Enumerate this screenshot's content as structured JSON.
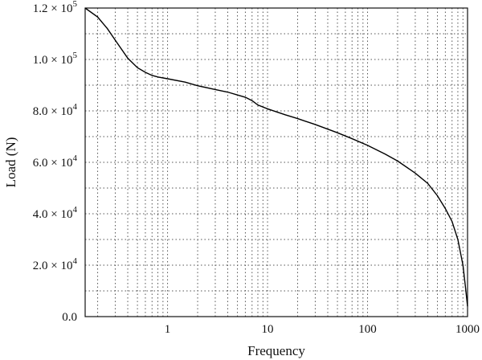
{
  "chart_data": {
    "type": "line",
    "title": "",
    "xlabel": "Frequency",
    "ylabel": "Load (N)",
    "x_scale": "log",
    "xlim": [
      0.15,
      1000
    ],
    "ylim": [
      0,
      120000
    ],
    "grid": true,
    "x_ticks": [
      {
        "value": 1,
        "label": "1"
      },
      {
        "value": 10,
        "label": "10"
      },
      {
        "value": 100,
        "label": "100"
      },
      {
        "value": 1000,
        "label": "1000"
      }
    ],
    "y_ticks": [
      {
        "value": 0,
        "mantissa": "0.0",
        "exp": ""
      },
      {
        "value": 20000,
        "mantissa": "2.0 × 10",
        "exp": "4"
      },
      {
        "value": 40000,
        "mantissa": "4.0 × 10",
        "exp": "4"
      },
      {
        "value": 60000,
        "mantissa": "6.0 × 10",
        "exp": "4"
      },
      {
        "value": 80000,
        "mantissa": "8.0 × 10",
        "exp": "4"
      },
      {
        "value": 100000,
        "mantissa": "1.0 × 10",
        "exp": "5"
      },
      {
        "value": 120000,
        "mantissa": "1.2 × 10",
        "exp": "5"
      }
    ],
    "series": [
      {
        "points": [
          [
            0.15,
            120000
          ],
          [
            0.2,
            116500
          ],
          [
            0.25,
            112000
          ],
          [
            0.3,
            107500
          ],
          [
            0.4,
            100500
          ],
          [
            0.5,
            96800
          ],
          [
            0.6,
            95000
          ],
          [
            0.7,
            93800
          ],
          [
            0.8,
            93200
          ],
          [
            1.0,
            92500
          ],
          [
            1.5,
            91200
          ],
          [
            2.0,
            89800
          ],
          [
            3.0,
            88300
          ],
          [
            4.0,
            87300
          ],
          [
            5.0,
            86200
          ],
          [
            6.0,
            85300
          ],
          [
            7.0,
            84000
          ],
          [
            8.0,
            82300
          ],
          [
            10,
            80800
          ],
          [
            15,
            78500
          ],
          [
            20,
            77000
          ],
          [
            30,
            74700
          ],
          [
            50,
            71500
          ],
          [
            70,
            69200
          ],
          [
            100,
            66600
          ],
          [
            150,
            63200
          ],
          [
            200,
            60500
          ],
          [
            300,
            55800
          ],
          [
            400,
            51800
          ],
          [
            500,
            47000
          ],
          [
            600,
            42000
          ],
          [
            700,
            37000
          ],
          [
            800,
            30000
          ],
          [
            900,
            20000
          ],
          [
            950,
            12000
          ],
          [
            1000,
            4000
          ]
        ]
      }
    ]
  }
}
